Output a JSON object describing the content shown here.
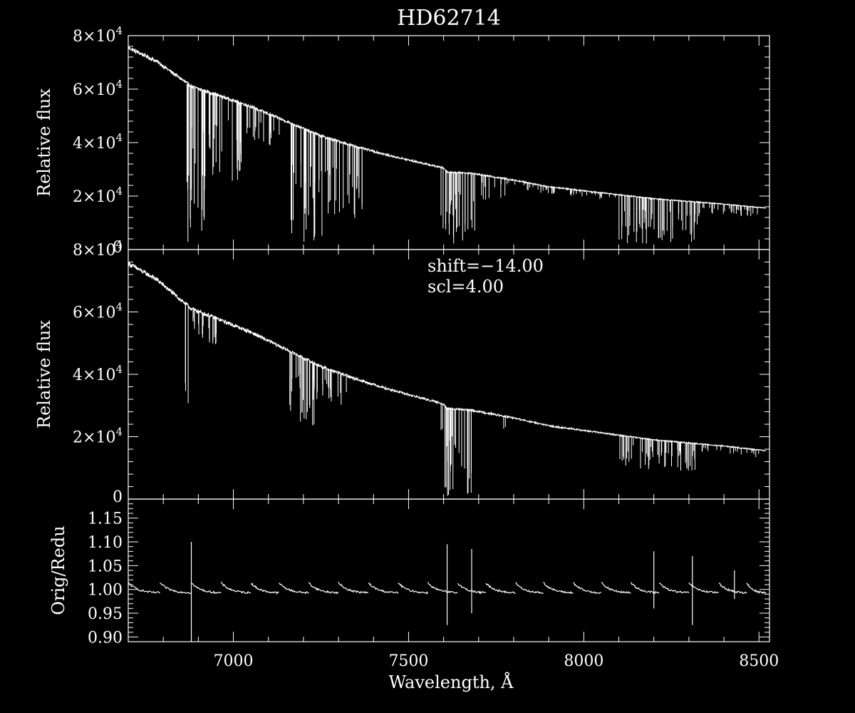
{
  "figure_title": "HD62714",
  "colors": {
    "background": "#000000",
    "foreground": "#ffffff"
  },
  "x_tick_labels": [
    "7000",
    "7500",
    "8000",
    "8500"
  ],
  "chart_data": [
    {
      "type": "line",
      "panel": "top",
      "title": "HD62714",
      "xlabel": "",
      "ylabel": "Relative flux",
      "xlim": [
        6700,
        8530
      ],
      "ylim": [
        0,
        80000
      ],
      "y_tick_values": [
        0,
        20000,
        40000,
        60000,
        80000
      ],
      "y_tick_labels": [
        {
          "mantissa": "0",
          "exponent": ""
        },
        {
          "mantissa": "2×10",
          "exponent": "4"
        },
        {
          "mantissa": "4×10",
          "exponent": "4"
        },
        {
          "mantissa": "6×10",
          "exponent": "4"
        },
        {
          "mantissa": "8×10",
          "exponent": "4"
        }
      ],
      "continuum": [
        [
          6700,
          75500
        ],
        [
          6780,
          70500
        ],
        [
          6870,
          62000
        ],
        [
          6880,
          61000
        ],
        [
          6950,
          58000
        ],
        [
          7050,
          53500
        ],
        [
          7150,
          48000
        ],
        [
          7250,
          42500
        ],
        [
          7350,
          38500
        ],
        [
          7450,
          35000
        ],
        [
          7550,
          32000
        ],
        [
          7600,
          30500
        ],
        [
          7610,
          29000
        ],
        [
          7680,
          28500
        ],
        [
          7800,
          26000
        ],
        [
          7900,
          23500
        ],
        [
          8000,
          22000
        ],
        [
          8100,
          20500
        ],
        [
          8200,
          19000
        ],
        [
          8300,
          18000
        ],
        [
          8400,
          17000
        ],
        [
          8520,
          15500
        ]
      ],
      "absorption_bands": [
        {
          "range": [
            6865,
            6920
          ],
          "depth": 0.97,
          "lines": 24
        },
        {
          "range": [
            6920,
            7050
          ],
          "depth": 0.55,
          "lines": 28
        },
        {
          "range": [
            7050,
            7140
          ],
          "depth": 0.25,
          "lines": 14
        },
        {
          "range": [
            7160,
            7260
          ],
          "depth": 0.95,
          "lines": 34
        },
        {
          "range": [
            7260,
            7380
          ],
          "depth": 0.7,
          "lines": 26
        },
        {
          "range": [
            7590,
            7690
          ],
          "depth": 0.98,
          "lines": 30
        },
        {
          "range": [
            7700,
            7780
          ],
          "depth": 0.35,
          "lines": 10
        },
        {
          "range": [
            7780,
            8100
          ],
          "depth": 0.12,
          "lines": 40
        },
        {
          "range": [
            8100,
            8330
          ],
          "depth": 0.9,
          "lines": 60
        },
        {
          "range": [
            8330,
            8500
          ],
          "depth": 0.25,
          "lines": 30
        }
      ]
    },
    {
      "type": "line",
      "panel": "middle",
      "xlabel": "",
      "ylabel": "Relative flux",
      "xlim": [
        6700,
        8530
      ],
      "ylim": [
        0,
        80000
      ],
      "y_tick_values": [
        0,
        20000,
        40000,
        60000,
        80000
      ],
      "y_tick_labels": [
        {
          "mantissa": "0",
          "exponent": ""
        },
        {
          "mantissa": "2×10",
          "exponent": "4"
        },
        {
          "mantissa": "4×10",
          "exponent": "4"
        },
        {
          "mantissa": "6×10",
          "exponent": "4"
        },
        {
          "mantissa": "8×10",
          "exponent": "4"
        }
      ],
      "annotations": [
        "shift=−14.00",
        "scl=4.00"
      ],
      "continuum": [
        [
          6700,
          75500
        ],
        [
          6780,
          70500
        ],
        [
          6870,
          62000
        ],
        [
          6880,
          61000
        ],
        [
          6950,
          58000
        ],
        [
          7050,
          53500
        ],
        [
          7150,
          48000
        ],
        [
          7250,
          42500
        ],
        [
          7350,
          38500
        ],
        [
          7450,
          35000
        ],
        [
          7550,
          32000
        ],
        [
          7600,
          30500
        ],
        [
          7610,
          29000
        ],
        [
          7680,
          28500
        ],
        [
          7800,
          26000
        ],
        [
          7900,
          23500
        ],
        [
          8000,
          22000
        ],
        [
          8100,
          20500
        ],
        [
          8200,
          19000
        ],
        [
          8300,
          18000
        ],
        [
          8400,
          17000
        ],
        [
          8520,
          15500
        ]
      ],
      "absorption_bands": [
        {
          "range": [
            6862,
            6872
          ],
          "depth": 0.6,
          "lines": 3
        },
        {
          "range": [
            6875,
            6960
          ],
          "depth": 0.15,
          "lines": 20
        },
        {
          "range": [
            7160,
            7250
          ],
          "depth": 0.5,
          "lines": 24
        },
        {
          "range": [
            7250,
            7330
          ],
          "depth": 0.25,
          "lines": 14
        },
        {
          "range": [
            7590,
            7680
          ],
          "depth": 1.0,
          "lines": 28
        },
        {
          "range": [
            7770,
            7780
          ],
          "depth": 0.2,
          "lines": 2
        },
        {
          "range": [
            8100,
            8330
          ],
          "depth": 0.5,
          "lines": 50
        },
        {
          "range": [
            8330,
            8500
          ],
          "depth": 0.15,
          "lines": 20
        }
      ]
    },
    {
      "type": "line",
      "panel": "bottom",
      "xlabel": "Wavelength, Å",
      "ylabel": "Orig/Redu",
      "xlim": [
        6700,
        8530
      ],
      "ylim": [
        0.89,
        1.19
      ],
      "y_tick_values": [
        0.9,
        0.95,
        1.0,
        1.05,
        1.1,
        1.15
      ],
      "y_tick_labels": [
        "0.90",
        "0.95",
        "1.00",
        "1.05",
        "1.10",
        "1.15"
      ],
      "baseline": 1.0,
      "segments": [
        {
          "start": 6700,
          "end": 6790
        },
        {
          "start": 6790,
          "end": 6880
        },
        {
          "start": 6880,
          "end": 6965
        },
        {
          "start": 6965,
          "end": 7050
        },
        {
          "start": 7050,
          "end": 7130
        },
        {
          "start": 7130,
          "end": 7215
        },
        {
          "start": 7215,
          "end": 7300
        },
        {
          "start": 7300,
          "end": 7385
        },
        {
          "start": 7385,
          "end": 7470
        },
        {
          "start": 7470,
          "end": 7555
        },
        {
          "start": 7555,
          "end": 7640
        },
        {
          "start": 7640,
          "end": 7720
        },
        {
          "start": 7720,
          "end": 7805
        },
        {
          "start": 7805,
          "end": 7885
        },
        {
          "start": 7885,
          "end": 7970
        },
        {
          "start": 7970,
          "end": 8050
        },
        {
          "start": 8050,
          "end": 8135
        },
        {
          "start": 8135,
          "end": 8215
        },
        {
          "start": 8215,
          "end": 8300
        },
        {
          "start": 8300,
          "end": 8385
        },
        {
          "start": 8385,
          "end": 8465
        },
        {
          "start": 8465,
          "end": 8520
        }
      ],
      "spikes": [
        [
          6880,
          1.1,
          0.88
        ],
        [
          7610,
          1.095,
          0.925
        ],
        [
          7680,
          1.085,
          0.95
        ],
        [
          8200,
          1.08,
          0.96
        ],
        [
          8310,
          1.07,
          0.925
        ],
        [
          8430,
          1.04,
          0.98
        ]
      ]
    }
  ]
}
